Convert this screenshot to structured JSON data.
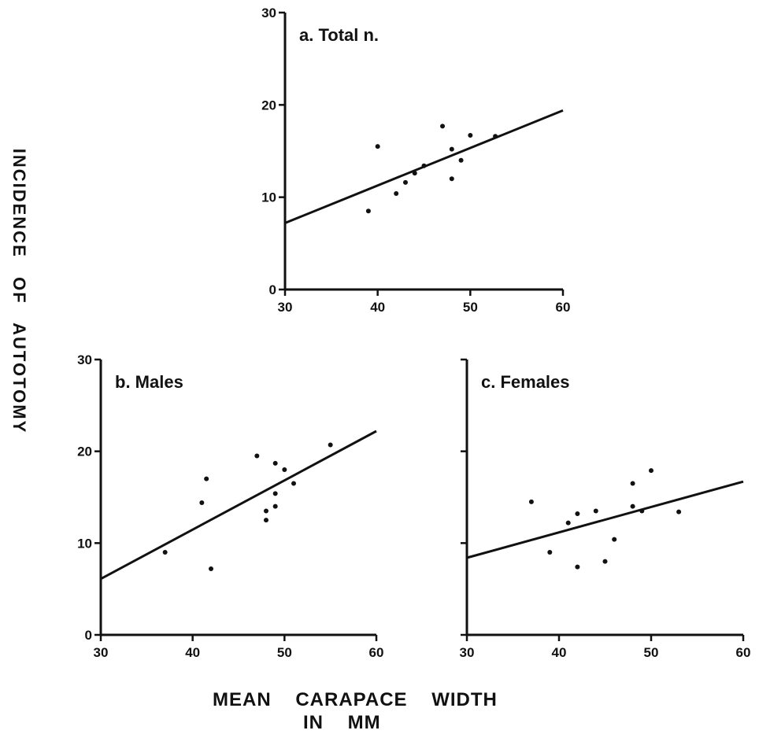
{
  "ylabel": "INCIDENCE   OF   AUTOTOMY",
  "xlabel_line1": "MEAN    CARAPACE    WIDTH",
  "xlabel_line2": "IN    MM",
  "chart_data": [
    {
      "type": "scatter",
      "title": "a. Total n.",
      "xlim": [
        30,
        60
      ],
      "ylim": [
        0,
        30
      ],
      "x_ticks": [
        30,
        40,
        50,
        60
      ],
      "y_ticks": [
        0,
        10,
        20,
        30
      ],
      "x_tick_labels": [
        "30",
        "40",
        "50",
        "60"
      ],
      "y_tick_labels": [
        "0",
        "10",
        "20",
        "30"
      ],
      "points": [
        [
          39,
          8.5
        ],
        [
          40,
          15.5
        ],
        [
          42,
          10.4
        ],
        [
          43,
          11.6
        ],
        [
          44,
          12.6
        ],
        [
          45,
          13.4
        ],
        [
          47,
          17.7
        ],
        [
          48,
          12
        ],
        [
          48,
          15.2
        ],
        [
          49,
          14
        ],
        [
          50,
          16.7
        ],
        [
          52.7,
          16.6
        ]
      ],
      "fit_line": [
        [
          30,
          7.2
        ],
        [
          60,
          19.4
        ]
      ]
    },
    {
      "type": "scatter",
      "title": "b. Males",
      "xlim": [
        30,
        60
      ],
      "ylim": [
        0,
        30
      ],
      "x_ticks": [
        30,
        40,
        50,
        60
      ],
      "y_ticks": [
        0,
        10,
        20,
        30
      ],
      "x_tick_labels": [
        "30",
        "40",
        "50",
        "60"
      ],
      "y_tick_labels": [
        "0",
        "10",
        "20",
        "30"
      ],
      "points": [
        [
          37,
          9
        ],
        [
          41,
          14.4
        ],
        [
          41.5,
          17
        ],
        [
          42,
          7.2
        ],
        [
          47,
          19.5
        ],
        [
          48,
          12.5
        ],
        [
          48,
          13.5
        ],
        [
          49,
          18.7
        ],
        [
          49,
          15.4
        ],
        [
          49,
          14
        ],
        [
          50,
          18
        ],
        [
          51,
          16.5
        ],
        [
          55,
          20.7
        ]
      ],
      "fit_line": [
        [
          30,
          6.1
        ],
        [
          60,
          22.2
        ]
      ]
    },
    {
      "type": "scatter",
      "title": "c. Females",
      "xlim": [
        30,
        60
      ],
      "ylim": [
        0,
        30
      ],
      "x_ticks": [
        30,
        40,
        50,
        60
      ],
      "y_ticks": [
        0,
        10,
        20,
        30
      ],
      "x_tick_labels": [
        "30",
        "40",
        "50",
        "60"
      ],
      "y_tick_labels": [
        "",
        "",
        "",
        ""
      ],
      "points": [
        [
          37,
          14.5
        ],
        [
          39,
          9
        ],
        [
          41,
          12.2
        ],
        [
          42,
          7.4
        ],
        [
          42,
          13.2
        ],
        [
          44,
          13.5
        ],
        [
          45,
          8
        ],
        [
          46,
          10.4
        ],
        [
          48,
          14
        ],
        [
          48,
          16.5
        ],
        [
          49,
          13.5
        ],
        [
          50,
          17.9
        ],
        [
          53,
          13.4
        ]
      ],
      "fit_line": [
        [
          30,
          8.4
        ],
        [
          60,
          16.7
        ]
      ]
    }
  ]
}
